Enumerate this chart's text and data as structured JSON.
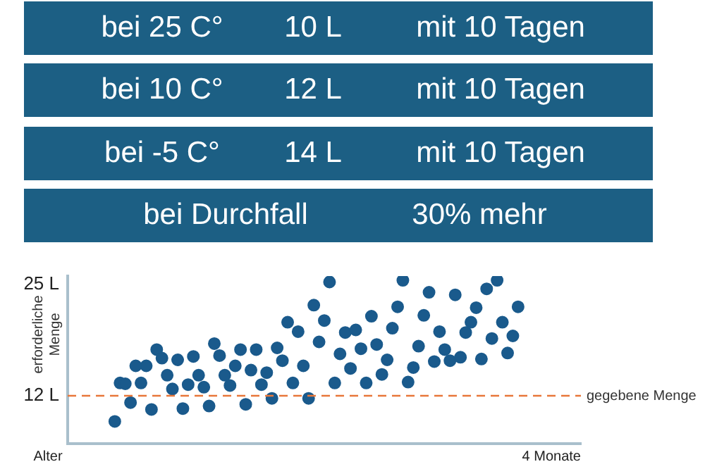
{
  "chart_data": {
    "type": "scatter",
    "xlabel": "Alter",
    "ylabel": "erforderliche Menge",
    "annotations": [
      "bei 25 C°",
      "10 L",
      "mit 10 Tagen",
      "bei 10 C°",
      "12 L",
      "mit 10 Tagen",
      "bei -5 C°",
      "14 L",
      "mit 10 Tagen",
      "bei Durchfall",
      "30% mehr",
      "4 Monate"
    ],
    "categories": [
      null,
      null,
      null,
      null,
      null,
      null,
      null,
      null,
      null,
      null,
      null,
      null,
      null,
      null,
      null,
      null,
      null,
      null,
      null,
      null,
      null,
      null,
      null,
      null,
      null,
      null,
      null,
      null,
      null,
      null,
      null,
      null,
      null,
      null,
      null,
      null,
      null,
      null,
      null,
      null,
      null,
      null,
      null,
      null,
      null,
      null,
      null,
      null,
      null,
      null,
      null,
      null,
      null,
      null,
      null,
      null,
      null,
      null,
      null,
      null,
      null,
      null,
      null,
      null,
      null,
      null,
      null,
      null,
      null,
      null,
      null,
      null,
      null,
      null,
      null,
      null,
      null,
      null,
      null,
      null,
      null,
      null,
      null,
      null,
      null,
      null,
      null,
      null,
      null,
      null,
      null,
      null,
      null,
      null,
      null,
      null,
      null,
      null,
      null
    ],
    "ylim": [
      6.4,
      26
    ],
    "yticks": [
      {
        "value": 12,
        "label": "12 L"
      },
      {
        "value": 25,
        "label": "25 L"
      }
    ],
    "grid": false,
    "legend": false,
    "marker": "circle",
    "ref_lines": [
      {
        "axis": "y",
        "value": 12,
        "label": "gegebene Menge",
        "color": "#e8773a",
        "line_style": "dashed"
      }
    ],
    "series": [
      {
        "color": "#1a5a8c",
        "values": [
          null,
          null,
          null,
          null,
          null,
          null,
          null,
          null,
          null,
          9.0,
          13.5,
          13.4,
          11.2,
          15.5,
          13.5,
          15.5,
          10.4,
          17.4,
          16.4,
          14.4,
          12.8,
          16.2,
          10.5,
          13.3,
          16.6,
          14.4,
          13.0,
          10.8,
          18.1,
          16.7,
          14.4,
          13.2,
          15.5,
          17.4,
          11.0,
          15.0,
          17.4,
          13.3,
          14.7,
          11.7,
          17.6,
          16.1,
          20.6,
          13.5,
          19.5,
          15.5,
          11.7,
          22.6,
          18.3,
          20.8,
          25.3,
          13.5,
          16.9,
          19.4,
          15.2,
          19.7,
          17.5,
          13.5,
          21.3,
          18.0,
          14.5,
          16.2,
          19.9,
          22.4,
          25.5,
          13.6,
          15.3,
          17.8,
          21.4,
          24.1,
          16.0,
          19.5,
          17.4,
          16.1,
          23.8,
          16.5,
          19.4,
          20.6,
          22.3,
          16.3,
          24.5,
          18.7,
          25.5,
          20.6,
          17.0,
          19.0,
          22.4,
          null,
          null,
          null,
          null,
          null,
          null,
          null,
          null,
          null,
          null,
          null,
          null
        ]
      }
    ]
  }
}
